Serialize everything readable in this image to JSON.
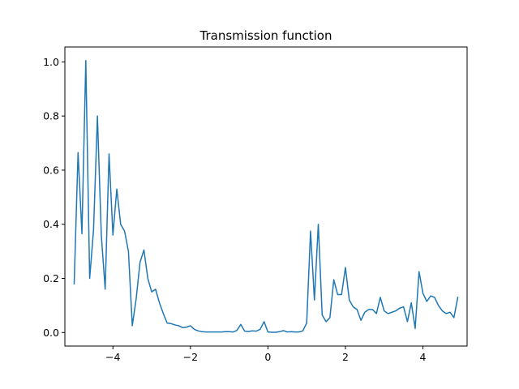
{
  "chart_data": {
    "type": "line",
    "title": "Transmission function",
    "xlabel": "",
    "ylabel": "",
    "xlim": [
      -5.24,
      5.14
    ],
    "ylim": [
      -0.05,
      1.055
    ],
    "xticks": [
      -4,
      -2,
      0,
      2,
      4
    ],
    "xtick_labels": [
      "−4",
      "−2",
      "0",
      "2",
      "4"
    ],
    "yticks": [
      0.0,
      0.2,
      0.4,
      0.6,
      0.8,
      1.0
    ],
    "ytick_labels": [
      "0.0",
      "0.2",
      "0.4",
      "0.6",
      "0.8",
      "1.0"
    ],
    "grid": false,
    "series": [
      {
        "name": "",
        "color": "#1f77b4",
        "x": [
          -5.0,
          -4.9,
          -4.8,
          -4.7,
          -4.6,
          -4.5,
          -4.4,
          -4.3,
          -4.2,
          -4.1,
          -4.0,
          -3.9,
          -3.8,
          -3.7,
          -3.6,
          -3.5,
          -3.4,
          -3.3,
          -3.2,
          -3.1,
          -3.0,
          -2.9,
          -2.8,
          -2.7,
          -2.6,
          -2.5,
          -2.4,
          -2.3,
          -2.2,
          -2.1,
          -2.0,
          -1.9,
          -1.8,
          -1.7,
          -1.6,
          -1.5,
          -1.4,
          -1.3,
          -1.2,
          -1.1,
          -1.0,
          -0.9,
          -0.8,
          -0.7,
          -0.6,
          -0.5,
          -0.4,
          -0.3,
          -0.2,
          -0.1,
          0.0,
          0.1,
          0.2,
          0.3,
          0.4,
          0.5,
          0.6,
          0.7,
          0.8,
          0.9,
          1.0,
          1.1,
          1.2,
          1.3,
          1.4,
          1.5,
          1.6,
          1.7,
          1.8,
          1.9,
          2.0,
          2.1,
          2.2,
          2.3,
          2.4,
          2.5,
          2.6,
          2.7,
          2.8,
          2.9,
          3.0,
          3.1,
          3.2,
          3.3,
          3.4,
          3.5,
          3.6,
          3.7,
          3.8,
          3.9,
          4.0,
          4.1,
          4.2,
          4.3,
          4.4,
          4.5,
          4.6,
          4.7,
          4.8,
          4.9
        ],
        "y": [
          0.18,
          0.665,
          0.365,
          1.005,
          0.2,
          0.38,
          0.8,
          0.36,
          0.16,
          0.66,
          0.36,
          0.53,
          0.4,
          0.375,
          0.3,
          0.025,
          0.125,
          0.26,
          0.305,
          0.2,
          0.15,
          0.16,
          0.11,
          0.07,
          0.035,
          0.033,
          0.028,
          0.025,
          0.018,
          0.02,
          0.025,
          0.012,
          0.006,
          0.003,
          0.002,
          0.002,
          0.002,
          0.002,
          0.002,
          0.003,
          0.003,
          0.002,
          0.008,
          0.03,
          0.005,
          0.004,
          0.006,
          0.005,
          0.012,
          0.04,
          0.002,
          0.001,
          0.001,
          0.003,
          0.007,
          0.002,
          0.003,
          0.002,
          0.002,
          0.006,
          0.035,
          0.375,
          0.12,
          0.4,
          0.065,
          0.04,
          0.055,
          0.195,
          0.14,
          0.14,
          0.24,
          0.12,
          0.095,
          0.085,
          0.045,
          0.075,
          0.085,
          0.085,
          0.07,
          0.13,
          0.08,
          0.07,
          0.075,
          0.08,
          0.09,
          0.095,
          0.04,
          0.11,
          0.015,
          0.225,
          0.145,
          0.115,
          0.135,
          0.13,
          0.1,
          0.08,
          0.07,
          0.075,
          0.055,
          0.13
        ]
      }
    ]
  }
}
